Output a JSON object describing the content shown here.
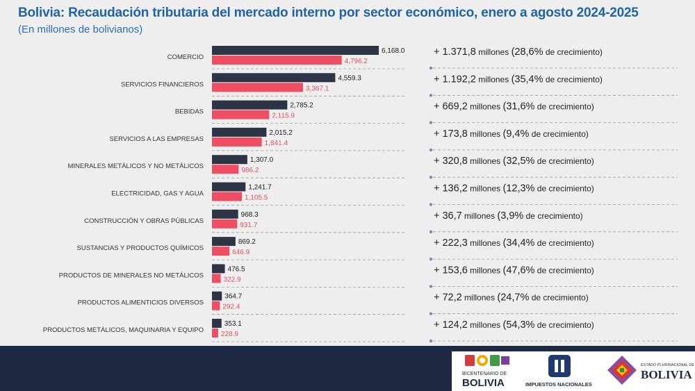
{
  "title": "Bolivia: Recaudación tributaria del mercado interno por sector económico, enero a agosto 2024-2025",
  "subtitle": "(En millones de bolivianos)",
  "colors": {
    "y2024": "#2d3446",
    "y2025": "#ee4f62",
    "title": "#1f63a8"
  },
  "chart_data": {
    "type": "bar",
    "orientation": "horizontal",
    "title": "Bolivia: Recaudación tributaria del mercado interno por sector económico, enero a agosto 2024-2025",
    "subtitle": "(En millones de bolivianos)",
    "categories": [
      "COMERCIO",
      "SERVICIOS FINANCIEROS",
      "BEBIDAS",
      "SERVICIOS A LAS EMPRESAS",
      "MINERALES METÁLICOS Y NO METÁLICOS",
      "ELECTRICIDAD, GAS Y AGUA",
      "CONSTRUCCIÓN Y OBRAS PÚBLICAS",
      "SUSTANCIAS Y PRODUCTOS QUÍMICOS",
      "PRODUCTOS DE MINERALES NO METÁLICOS",
      "PRODUCTOS ALIMENTICIOS DIVERSOS",
      "PRODUCTOS METÁLICOS, MAQUINARIA Y EQUIPO"
    ],
    "series": [
      {
        "values": [
          6168.0,
          4559.3,
          2785.2,
          2015.2,
          1307.0,
          1241.7,
          968.3,
          869.2,
          476.5,
          364.7,
          353.1
        ],
        "labels": [
          "6,168.0",
          "4,559.3",
          "2,785.2",
          "2,015.2",
          "1,307.0",
          "1,241.7",
          "968.3",
          "869.2",
          "476.5",
          "364.7",
          "353.1"
        ]
      },
      {
        "values": [
          4796.2,
          3367.1,
          2115.9,
          1841.4,
          986.2,
          1105.5,
          931.7,
          646.9,
          322.9,
          292.4,
          228.9
        ],
        "labels": [
          "4,796.2",
          "3,367.1",
          "2,115.9",
          "1,841.4",
          "986.2",
          "1,105.5",
          "931.7",
          "646.9",
          "322.9",
          "292.4",
          "228.9"
        ]
      }
    ],
    "annotations": [
      {
        "amount": "+ 1.371,8",
        "unit": "millones",
        "pct": "(28,6%",
        "suffix": "de crecimiento)"
      },
      {
        "amount": "+ 1.192,2",
        "unit": "millones",
        "pct": "(35,4%",
        "suffix": "de crecimiento)"
      },
      {
        "amount": "+ 669,2",
        "unit": "millones",
        "pct": "(31,6%",
        "suffix": "de crecimiento)"
      },
      {
        "amount": "+ 173,8",
        "unit": "millones",
        "pct": "(9,4%",
        "suffix": "de crecimiento)"
      },
      {
        "amount": "+ 320,8",
        "unit": "millones",
        "pct": "(32,5%",
        "suffix": "de crecimiento)"
      },
      {
        "amount": "+ 136,2",
        "unit": "millones",
        "pct": "(12,3%",
        "suffix": "de crecimiento)"
      },
      {
        "amount": "+ 36,7",
        "unit": "millones",
        "pct": "(3,9%",
        "suffix": "de crecimiento)"
      },
      {
        "amount": "+ 222,3",
        "unit": "millones",
        "pct": "(34,4%",
        "suffix": "de crecimiento)"
      },
      {
        "amount": "+ 153,6",
        "unit": "millones",
        "pct": "(47,6%",
        "suffix": "de crecimiento)"
      },
      {
        "amount": "+ 72,2",
        "unit": "millones",
        "pct": "(24,7%",
        "suffix": "de crecimiento)"
      },
      {
        "amount": "+ 124,2",
        "unit": "millones",
        "pct": "(54,3%",
        "suffix": "de crecimiento)"
      }
    ]
  },
  "logos": {
    "bicentenario": {
      "line1": "BICENTENARIO DE",
      "line2": "BOLIVIA"
    },
    "impuestos": {
      "text": "IMPUESTOS NACIONALES"
    },
    "estado": {
      "line1": "ESTADO PLURINACIONAL DE",
      "line2": "BOLIVIA"
    }
  }
}
